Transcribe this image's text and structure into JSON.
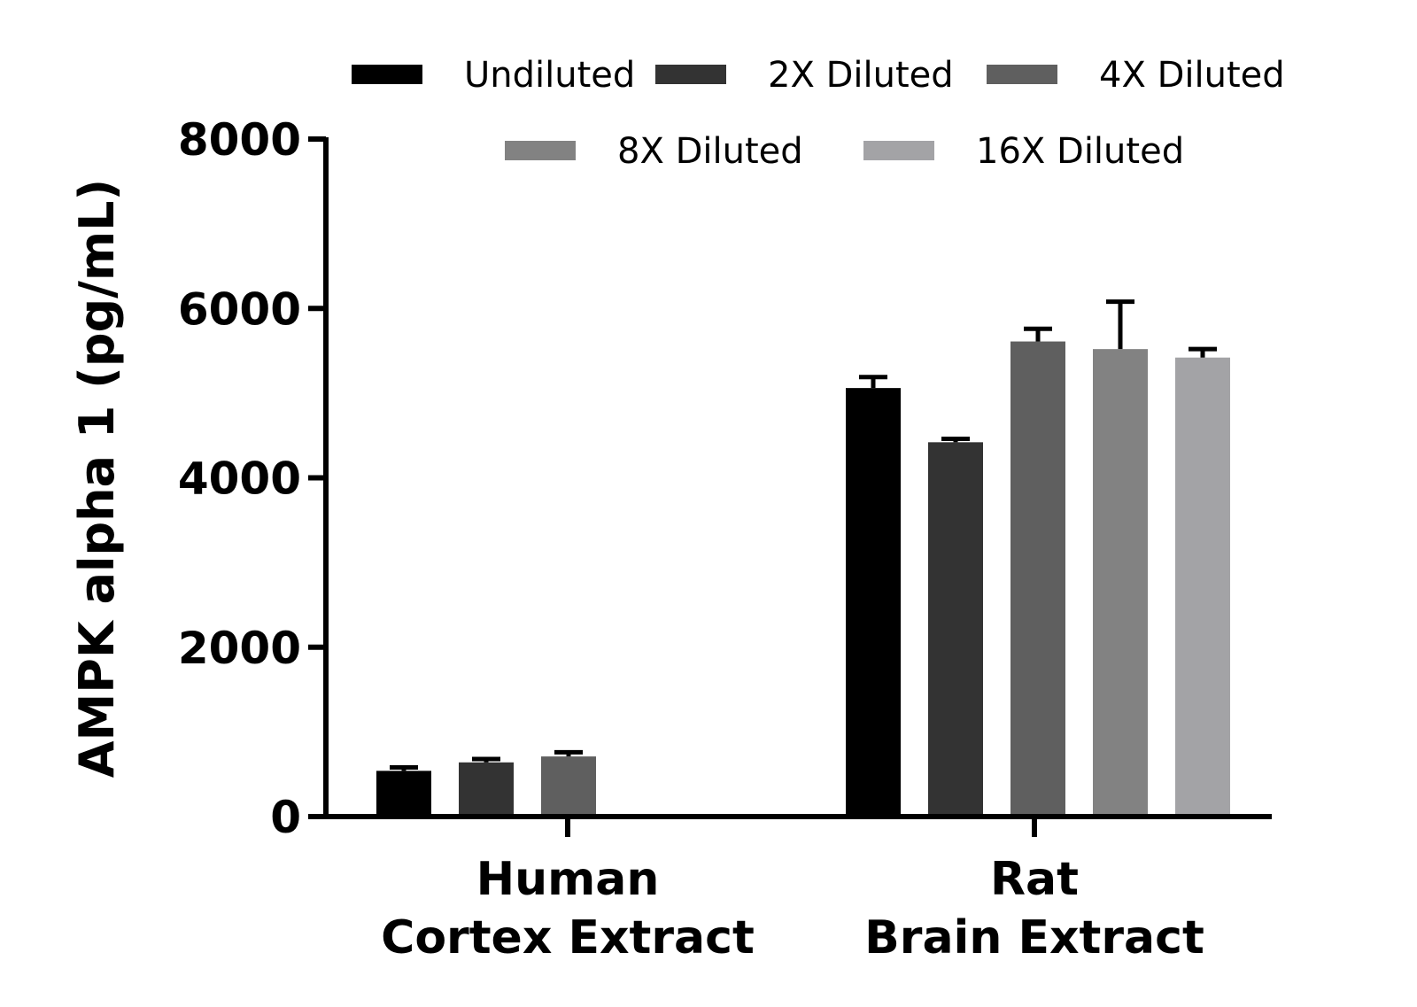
{
  "chart_data": {
    "type": "bar",
    "title": "",
    "xlabel": "",
    "ylabel": "AMPK alpha 1 (pg/mL)",
    "ylim": [
      0,
      8000
    ],
    "yticks": [
      0,
      2000,
      4000,
      6000,
      8000
    ],
    "grid": false,
    "legend_position": "top",
    "categories": [
      {
        "line1": "Human",
        "line2": "Cortex Extract"
      },
      {
        "line1": "Rat",
        "line2": "Brain Extract"
      }
    ],
    "series": [
      {
        "name": "Undiluted",
        "color": "#000000",
        "values": [
          540,
          5060
        ],
        "errors": [
          40,
          130
        ]
      },
      {
        "name": "2X Diluted",
        "color": "#333333",
        "values": [
          640,
          4420
        ],
        "errors": [
          40,
          40
        ]
      },
      {
        "name": "4X Diluted",
        "color": "#5f5f5f",
        "values": [
          710,
          5610
        ],
        "errors": [
          50,
          150
        ]
      },
      {
        "name": "8X Diluted",
        "color": "#828282",
        "values": [
          null,
          5520
        ],
        "errors": [
          null,
          560
        ]
      },
      {
        "name": "16X Diluted",
        "color": "#a3a3a6",
        "values": [
          null,
          5420
        ],
        "errors": [
          null,
          100
        ]
      }
    ]
  }
}
